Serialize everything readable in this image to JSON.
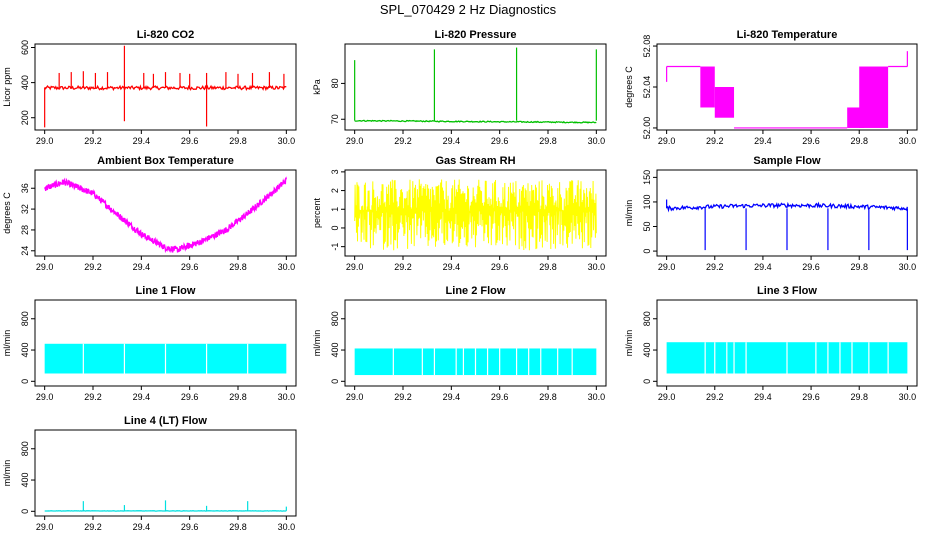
{
  "page_title": "SPL_070429  2 Hz Diagnostics",
  "chart_data": [
    {
      "type": "line",
      "title": "Li-820 CO2",
      "xlabel": "",
      "ylabel": "Licor ppm",
      "xlim": [
        29.0,
        30.0
      ],
      "ylim": [
        130,
        620
      ],
      "xticks": [
        "29.0",
        "29.2",
        "29.4",
        "29.6",
        "29.8",
        "30.0"
      ],
      "yticks": [
        200,
        400,
        600
      ],
      "ytick_labels": [
        "200",
        "400",
        "600"
      ],
      "color": "#ff0000",
      "pattern": "co2",
      "baseline": 370,
      "noise": 10,
      "spikes": [
        {
          "x": 29.06,
          "y": 455
        },
        {
          "x": 29.11,
          "y": 460
        },
        {
          "x": 29.16,
          "y": 465
        },
        {
          "x": 29.21,
          "y": 455
        },
        {
          "x": 29.26,
          "y": 460
        },
        {
          "x": 29.33,
          "y": 610
        },
        {
          "x": 29.33,
          "y": 180
        },
        {
          "x": 29.41,
          "y": 455
        },
        {
          "x": 29.45,
          "y": 450
        },
        {
          "x": 29.5,
          "y": 460
        },
        {
          "x": 29.56,
          "y": 455
        },
        {
          "x": 29.6,
          "y": 450
        },
        {
          "x": 29.67,
          "y": 150
        },
        {
          "x": 29.67,
          "y": 455
        },
        {
          "x": 29.75,
          "y": 460
        },
        {
          "x": 29.8,
          "y": 450
        },
        {
          "x": 29.86,
          "y": 455
        },
        {
          "x": 29.93,
          "y": 460
        },
        {
          "x": 29.99,
          "y": 450
        },
        {
          "x": 29.0,
          "y": 145
        }
      ]
    },
    {
      "type": "line",
      "title": "Li-820 Pressure",
      "xlabel": "",
      "ylabel": "kPa",
      "xlim": [
        29.0,
        30.0
      ],
      "ylim": [
        67,
        91
      ],
      "xticks": [
        "29.0",
        "29.2",
        "29.4",
        "29.6",
        "29.8",
        "30.0"
      ],
      "yticks": [
        70,
        80
      ],
      "ytick_labels": [
        "70",
        "80"
      ],
      "color": "#00c000",
      "pattern": "pressure",
      "baseline_start": 69.6,
      "baseline_end": 69.1,
      "spikes": [
        {
          "x": 29.0,
          "y": 86.5
        },
        {
          "x": 29.33,
          "y": 89.5
        },
        {
          "x": 29.67,
          "y": 90
        },
        {
          "x": 30.0,
          "y": 89.5
        }
      ]
    },
    {
      "type": "line",
      "title": "Li-820 Temperature",
      "xlabel": "",
      "ylabel": "degrees C",
      "xlim": [
        29.0,
        30.0
      ],
      "ylim": [
        51.998,
        52.082
      ],
      "xticks": [
        "29.0",
        "29.2",
        "29.4",
        "29.6",
        "29.8",
        "30.0"
      ],
      "yticks": [
        52.0,
        52.04,
        52.08
      ],
      "ytick_labels": [
        "52.00",
        "52.04",
        "52.08"
      ],
      "color": "#ff00ff",
      "pattern": "temperature",
      "segments": [
        {
          "x0": 29.0,
          "x1": 29.14,
          "y": 52.06
        },
        {
          "x0": 29.14,
          "x1": 29.2,
          "y0": 52.06,
          "y1": 52.02
        },
        {
          "x0": 29.2,
          "x1": 29.28,
          "y0": 52.04,
          "y1": 52.01
        },
        {
          "x0": 29.28,
          "x1": 29.75,
          "y": 52.0
        },
        {
          "x0": 29.75,
          "x1": 29.82,
          "y0": 52.02,
          "y1": 52.0
        },
        {
          "x0": 29.8,
          "x1": 29.92,
          "y0": 52.06,
          "y1": 52.0
        },
        {
          "x0": 29.92,
          "x1": 30.0,
          "y": 52.06
        }
      ]
    },
    {
      "type": "line",
      "title": "Ambient Box Temperature",
      "xlabel": "",
      "ylabel": "degrees C",
      "xlim": [
        29.0,
        30.0
      ],
      "ylim": [
        23,
        39.5
      ],
      "xticks": [
        "29.0",
        "29.2",
        "29.4",
        "29.6",
        "29.8",
        "30.0"
      ],
      "yticks": [
        24,
        28,
        32,
        36
      ],
      "ytick_labels": [
        "24",
        "28",
        "32",
        "36"
      ],
      "color": "#ff00ff",
      "pattern": "ambient",
      "noise": 0.6,
      "points": [
        {
          "x": 29.0,
          "y": 36
        },
        {
          "x": 29.08,
          "y": 37.2
        },
        {
          "x": 29.2,
          "y": 35
        },
        {
          "x": 29.3,
          "y": 31
        },
        {
          "x": 29.4,
          "y": 27.2
        },
        {
          "x": 29.5,
          "y": 24.6
        },
        {
          "x": 29.55,
          "y": 24.2
        },
        {
          "x": 29.65,
          "y": 25.8
        },
        {
          "x": 29.75,
          "y": 28
        },
        {
          "x": 29.85,
          "y": 31.5
        },
        {
          "x": 29.95,
          "y": 35.5
        },
        {
          "x": 30.0,
          "y": 37.5
        }
      ]
    },
    {
      "type": "line",
      "title": "Gas Stream RH",
      "xlabel": "",
      "ylabel": "percent",
      "xlim": [
        29.0,
        30.0
      ],
      "ylim": [
        -1.5,
        3.1
      ],
      "xticks": [
        "29.0",
        "29.2",
        "29.4",
        "29.6",
        "29.8",
        "30.0"
      ],
      "yticks": [
        -1,
        0,
        1,
        2,
        3
      ],
      "ytick_labels": [
        "-1",
        "0",
        "1",
        "2",
        "3"
      ],
      "color": "#ffff00",
      "pattern": "rh",
      "center": 0.9,
      "band_low": -1.2,
      "band_high": 2.6
    },
    {
      "type": "line",
      "title": "Sample Flow",
      "xlabel": "",
      "ylabel": "ml/min",
      "xlim": [
        29.0,
        30.0
      ],
      "ylim": [
        -10,
        165
      ],
      "xticks": [
        "29.0",
        "29.2",
        "29.4",
        "29.6",
        "29.8",
        "30.0"
      ],
      "yticks": [
        0,
        50,
        100,
        150
      ],
      "ytick_labels": [
        "0",
        "50",
        "100",
        "150"
      ],
      "color": "#0000ff",
      "pattern": "sample",
      "baseline": 87,
      "noise": 4,
      "spikes": [
        {
          "x": 29.0,
          "y": 105
        },
        {
          "x": 29.16,
          "y": 2
        },
        {
          "x": 29.33,
          "y": 2
        },
        {
          "x": 29.5,
          "y": 2
        },
        {
          "x": 29.67,
          "y": 2
        },
        {
          "x": 29.84,
          "y": 2
        },
        {
          "x": 30.0,
          "y": 2
        }
      ]
    },
    {
      "type": "area",
      "title": "Line 1 Flow",
      "xlabel": "",
      "ylabel": "ml/min",
      "xlim": [
        29.0,
        30.0
      ],
      "ylim": [
        -60,
        1040
      ],
      "xticks": [
        "29.0",
        "29.2",
        "29.4",
        "29.6",
        "29.8",
        "30.0"
      ],
      "yticks": [
        0,
        400,
        800
      ],
      "ytick_labels": [
        "0",
        "400",
        "800"
      ],
      "color": "#00ffff",
      "pattern": "flowband",
      "band_low": 100,
      "band_high": 480,
      "gaps": [
        29.16,
        29.33,
        29.5,
        29.67,
        29.84
      ]
    },
    {
      "type": "area",
      "title": "Line 2 Flow",
      "xlabel": "",
      "ylabel": "ml/min",
      "xlim": [
        29.0,
        30.0
      ],
      "ylim": [
        -60,
        1040
      ],
      "xticks": [
        "29.0",
        "29.2",
        "29.4",
        "29.6",
        "29.8",
        "30.0"
      ],
      "yticks": [
        0,
        400,
        800
      ],
      "ytick_labels": [
        "0",
        "400",
        "800"
      ],
      "color": "#00ffff",
      "pattern": "flowband",
      "band_low": 80,
      "band_high": 420,
      "gaps": [
        29.16,
        29.28,
        29.33,
        29.42,
        29.45,
        29.5,
        29.55,
        29.6,
        29.67,
        29.72,
        29.77,
        29.84,
        29.9
      ]
    },
    {
      "type": "area",
      "title": "Line 3 Flow",
      "xlabel": "",
      "ylabel": "ml/min",
      "xlim": [
        29.0,
        30.0
      ],
      "ylim": [
        -60,
        1040
      ],
      "xticks": [
        "29.0",
        "29.2",
        "29.4",
        "29.6",
        "29.8",
        "30.0"
      ],
      "yticks": [
        0,
        400,
        800
      ],
      "ytick_labels": [
        "0",
        "400",
        "800"
      ],
      "color": "#00ffff",
      "pattern": "flowband",
      "band_low": 100,
      "band_high": 500,
      "gaps": [
        29.16,
        29.2,
        29.25,
        29.28,
        29.33,
        29.5,
        29.62,
        29.67,
        29.72,
        29.77,
        29.84,
        29.92
      ]
    },
    {
      "type": "line",
      "title": "Line 4 (LT) Flow",
      "xlabel": "",
      "ylabel": "ml/min",
      "xlim": [
        29.0,
        30.0
      ],
      "ylim": [
        -60,
        1040
      ],
      "xticks": [
        "29.0",
        "29.2",
        "29.4",
        "29.6",
        "29.8",
        "30.0"
      ],
      "yticks": [
        0,
        400,
        800
      ],
      "ytick_labels": [
        "0",
        "400",
        "800"
      ],
      "color": "#00e0e0",
      "pattern": "line4",
      "baseline": 5,
      "spikes": [
        {
          "x": 29.16,
          "y": 130
        },
        {
          "x": 29.33,
          "y": 80
        },
        {
          "x": 29.5,
          "y": 140
        },
        {
          "x": 29.67,
          "y": 70
        },
        {
          "x": 29.84,
          "y": 130
        },
        {
          "x": 30.0,
          "y": 60
        }
      ]
    }
  ]
}
